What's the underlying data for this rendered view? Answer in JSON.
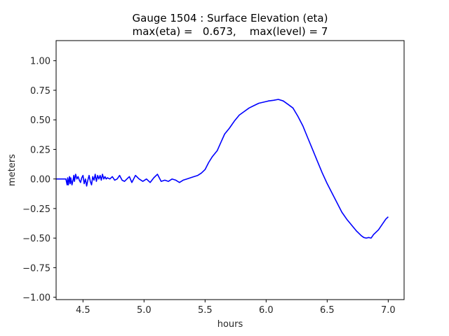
{
  "chart_data": {
    "type": "line",
    "title": "Gauge 1504 : Surface Elevation (eta)",
    "subtitle": "max(eta) =   0.673,    max(level) = 7",
    "xlabel": "hours",
    "ylabel": "meters",
    "xlim": [
      4.28,
      7.13
    ],
    "ylim": [
      -1.02,
      1.17
    ],
    "grid": false,
    "xticks": [
      4.5,
      5.0,
      5.5,
      6.0,
      6.5,
      7.0
    ],
    "xtick_labels": [
      "4.5",
      "5.0",
      "5.5",
      "6.0",
      "6.5",
      "7.0"
    ],
    "yticks": [
      1.0,
      0.75,
      0.5,
      0.25,
      0.0,
      -0.25,
      -0.5,
      -0.75,
      -1.0
    ],
    "ytick_labels": [
      "1.00",
      "0.75",
      "0.50",
      "0.25",
      "0.00",
      "−0.25",
      "−0.50",
      "−0.75",
      "−1.00"
    ],
    "series": [
      {
        "name": "eta",
        "color": "#0000ff",
        "x": [
          4.28,
          4.36,
          4.37,
          4.375,
          4.38,
          4.39,
          4.395,
          4.4,
          4.41,
          4.42,
          4.425,
          4.43,
          4.44,
          4.45,
          4.46,
          4.47,
          4.48,
          4.49,
          4.5,
          4.51,
          4.52,
          4.53,
          4.54,
          4.55,
          4.56,
          4.57,
          4.58,
          4.59,
          4.6,
          4.61,
          4.62,
          4.63,
          4.64,
          4.65,
          4.66,
          4.67,
          4.68,
          4.69,
          4.7,
          4.72,
          4.74,
          4.76,
          4.78,
          4.8,
          4.82,
          4.84,
          4.86,
          4.88,
          4.9,
          4.93,
          4.96,
          4.99,
          5.02,
          5.05,
          5.08,
          5.11,
          5.14,
          5.17,
          5.2,
          5.23,
          5.26,
          5.29,
          5.32,
          5.35,
          5.38,
          5.41,
          5.44,
          5.47,
          5.5,
          5.53,
          5.56,
          5.6,
          5.63,
          5.66,
          5.7,
          5.74,
          5.78,
          5.82,
          5.86,
          5.9,
          5.94,
          5.98,
          6.02,
          6.06,
          6.1,
          6.14,
          6.18,
          6.22,
          6.26,
          6.3,
          6.34,
          6.38,
          6.42,
          6.46,
          6.5,
          6.54,
          6.58,
          6.62,
          6.66,
          6.7,
          6.74,
          6.78,
          6.8,
          6.82,
          6.84,
          6.86,
          6.88,
          6.9,
          6.92,
          6.94,
          6.96,
          6.98,
          7.0
        ],
        "y": [
          0.0,
          0.0,
          -0.05,
          0.01,
          -0.05,
          0.02,
          -0.04,
          0.01,
          -0.05,
          0.0,
          0.03,
          -0.02,
          0.04,
          0.0,
          0.02,
          -0.01,
          -0.03,
          0.01,
          0.03,
          -0.04,
          0.0,
          -0.06,
          -0.01,
          0.03,
          -0.02,
          -0.05,
          0.02,
          -0.01,
          0.04,
          -0.02,
          0.03,
          0.0,
          0.03,
          -0.01,
          0.04,
          0.0,
          0.02,
          0.0,
          0.01,
          0.0,
          0.02,
          -0.01,
          0.0,
          0.03,
          -0.01,
          -0.02,
          0.0,
          0.02,
          -0.03,
          0.03,
          0.0,
          -0.02,
          0.0,
          -0.03,
          0.01,
          0.04,
          -0.02,
          -0.01,
          -0.02,
          0.0,
          -0.01,
          -0.03,
          -0.01,
          0.0,
          0.01,
          0.02,
          0.03,
          0.05,
          0.08,
          0.14,
          0.19,
          0.24,
          0.31,
          0.38,
          0.43,
          0.49,
          0.54,
          0.57,
          0.6,
          0.62,
          0.64,
          0.65,
          0.66,
          0.665,
          0.673,
          0.66,
          0.63,
          0.6,
          0.53,
          0.45,
          0.35,
          0.25,
          0.15,
          0.05,
          -0.04,
          -0.12,
          -0.2,
          -0.28,
          -0.34,
          -0.39,
          -0.44,
          -0.48,
          -0.495,
          -0.5,
          -0.495,
          -0.5,
          -0.47,
          -0.45,
          -0.43,
          -0.4,
          -0.37,
          -0.34,
          -0.32
        ]
      }
    ]
  }
}
